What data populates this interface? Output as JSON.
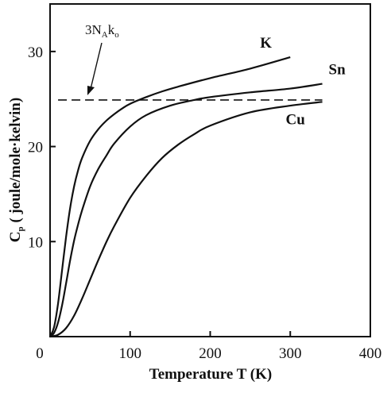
{
  "chart_data": {
    "type": "line",
    "title": "",
    "xlabel": "Temperature T (K)",
    "ylabel_main": "C",
    "ylabel_sub": "p",
    "ylabel_rest": " ( joule/mole·kelvin)",
    "xlim": [
      0,
      400
    ],
    "ylim": [
      0,
      35
    ],
    "x_ticks": [
      0,
      100,
      200,
      300,
      400
    ],
    "y_ticks": [
      10,
      20,
      30
    ],
    "grid": false,
    "series": [
      {
        "name": "K",
        "x": [
          0,
          5,
          10,
          15,
          20,
          25,
          30,
          35,
          40,
          50,
          60,
          70,
          80,
          90,
          100,
          120,
          140,
          160,
          200,
          250,
          300
        ],
        "y": [
          0,
          1.0,
          3.5,
          7.0,
          10.5,
          13.5,
          15.8,
          17.5,
          18.8,
          20.6,
          21.8,
          22.7,
          23.4,
          24.0,
          24.5,
          25.2,
          25.8,
          26.3,
          27.2,
          28.2,
          29.4
        ]
      },
      {
        "name": "Sn",
        "x": [
          0,
          5,
          10,
          15,
          20,
          25,
          30,
          35,
          40,
          50,
          60,
          70,
          80,
          100,
          120,
          150,
          180,
          200,
          250,
          300,
          340
        ],
        "y": [
          0,
          0.4,
          1.5,
          3.3,
          5.6,
          8.0,
          10.1,
          11.8,
          13.3,
          15.8,
          17.6,
          19.0,
          20.3,
          22.1,
          23.3,
          24.3,
          24.9,
          25.2,
          25.7,
          26.1,
          26.6
        ]
      },
      {
        "name": "Cu",
        "x": [
          0,
          10,
          20,
          30,
          40,
          50,
          60,
          70,
          80,
          100,
          120,
          140,
          160,
          180,
          200,
          250,
          300,
          340
        ],
        "y": [
          0,
          0.2,
          0.9,
          2.2,
          4.0,
          6.0,
          8.0,
          9.9,
          11.6,
          14.6,
          16.9,
          18.8,
          20.2,
          21.3,
          22.2,
          23.6,
          24.3,
          24.7
        ]
      }
    ],
    "reference_line": {
      "label": "3N",
      "label_sub1": "A",
      "label_mid": "k",
      "label_sub2": "o",
      "y": 24.9,
      "x_range": [
        10,
        340
      ]
    }
  }
}
